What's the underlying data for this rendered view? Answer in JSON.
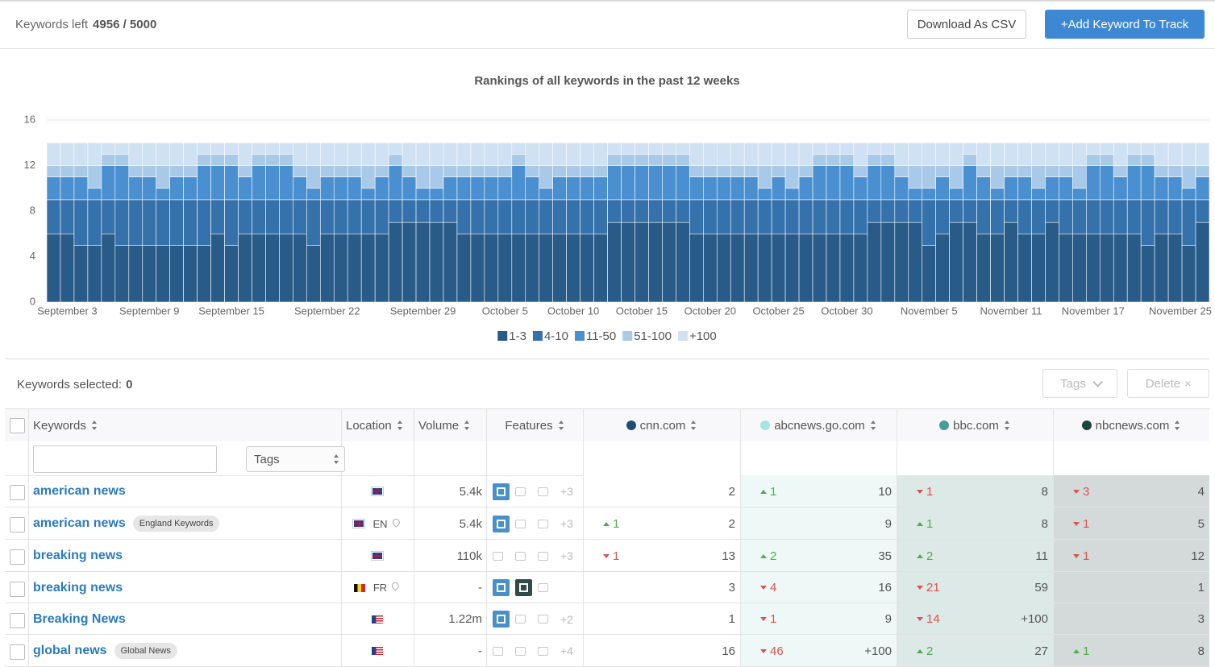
{
  "header": {
    "keywords_left_label": "Keywords left",
    "keywords_left": "4956 / 5000",
    "download": "Download As CSV",
    "add": "+Add Keyword To Track"
  },
  "chart_data": {
    "type": "stacked-bar",
    "title": "Rankings of all keywords in the past 12 weeks",
    "categories": [
      null,
      "September 3",
      null,
      null,
      null,
      null,
      null,
      "September 9",
      null,
      null,
      null,
      null,
      null,
      "September 15",
      null,
      null,
      null,
      null,
      null,
      null,
      "September 22",
      null,
      null,
      null,
      null,
      null,
      null,
      "September 29",
      null,
      null,
      null,
      null,
      null,
      "October 5",
      null,
      null,
      null,
      null,
      "October 10",
      null,
      null,
      null,
      null,
      "October 15",
      null,
      null,
      null,
      null,
      "October 20",
      null,
      null,
      null,
      null,
      "October 25",
      null,
      null,
      null,
      null,
      "October 30",
      null,
      null,
      null,
      null,
      null,
      "November 5",
      null,
      null,
      null,
      null,
      null,
      "November 11",
      null,
      null,
      null,
      null,
      null,
      "November 17",
      null,
      null,
      null,
      null,
      null,
      null,
      null,
      "November 25"
    ],
    "series": [
      {
        "name": "1-3",
        "color": "#285b88",
        "values": [
          6,
          6,
          5,
          5,
          6,
          5,
          5,
          5,
          5,
          5,
          5,
          5,
          6,
          5,
          6,
          6,
          6,
          6,
          6,
          5,
          6,
          6,
          6,
          6,
          6,
          7,
          7,
          7,
          7,
          7,
          6,
          6,
          6,
          6,
          6,
          6,
          6,
          6,
          6,
          6,
          6,
          7,
          7,
          7,
          7,
          7,
          7,
          6,
          6,
          6,
          6,
          6,
          6,
          6,
          6,
          6,
          6,
          6,
          6,
          6,
          7,
          7,
          7,
          7,
          5,
          6,
          7,
          7,
          6,
          6,
          7,
          6,
          6,
          7,
          6,
          6,
          6,
          6,
          6,
          6,
          5,
          6,
          6,
          5,
          7
        ]
      },
      {
        "name": "4-10",
        "color": "#3572ab",
        "values": [
          3,
          3,
          4,
          4,
          3,
          4,
          4,
          4,
          4,
          4,
          4,
          4,
          3,
          4,
          3,
          3,
          3,
          3,
          3,
          4,
          3,
          3,
          3,
          3,
          3,
          2,
          2,
          2,
          2,
          2,
          3,
          3,
          3,
          3,
          3,
          3,
          3,
          3,
          3,
          3,
          3,
          2,
          2,
          2,
          2,
          2,
          2,
          3,
          3,
          3,
          3,
          3,
          3,
          3,
          3,
          3,
          3,
          3,
          3,
          3,
          2,
          2,
          2,
          2,
          4,
          3,
          2,
          2,
          3,
          3,
          2,
          3,
          3,
          2,
          3,
          3,
          3,
          3,
          3,
          3,
          4,
          3,
          3,
          4,
          2
        ]
      },
      {
        "name": "11-50",
        "color": "#4a8fd0",
        "values": [
          2,
          2,
          2,
          1,
          3,
          3,
          2,
          2,
          1,
          2,
          2,
          3,
          3,
          3,
          2,
          3,
          3,
          3,
          2,
          1,
          2,
          2,
          2,
          1,
          2,
          3,
          2,
          1,
          1,
          2,
          2,
          2,
          2,
          2,
          3,
          2,
          1,
          2,
          2,
          2,
          2,
          3,
          3,
          3,
          3,
          3,
          3,
          2,
          2,
          2,
          2,
          2,
          1,
          2,
          1,
          2,
          3,
          3,
          3,
          2,
          3,
          3,
          2,
          1,
          1,
          2,
          1,
          3,
          2,
          1,
          2,
          2,
          1,
          2,
          2,
          1,
          3,
          3,
          2,
          3,
          3,
          2,
          2,
          1,
          2
        ]
      },
      {
        "name": "51-100",
        "color": "#a8c9e8",
        "values": [
          1,
          1,
          1,
          2,
          1,
          1,
          1,
          1,
          2,
          1,
          1,
          1,
          1,
          1,
          1,
          1,
          1,
          1,
          1,
          2,
          1,
          1,
          1,
          2,
          1,
          1,
          1,
          2,
          2,
          1,
          1,
          1,
          1,
          1,
          1,
          1,
          2,
          1,
          1,
          1,
          1,
          1,
          1,
          1,
          1,
          1,
          1,
          1,
          1,
          1,
          1,
          1,
          2,
          1,
          2,
          1,
          1,
          1,
          1,
          1,
          1,
          1,
          1,
          2,
          2,
          1,
          2,
          1,
          1,
          2,
          1,
          1,
          2,
          1,
          1,
          2,
          1,
          1,
          1,
          1,
          1,
          1,
          1,
          2,
          1
        ]
      },
      {
        "name": "+100",
        "color": "#cfe1f2",
        "values": [
          2,
          2,
          2,
          2,
          1,
          1,
          2,
          2,
          2,
          2,
          2,
          1,
          1,
          1,
          2,
          1,
          1,
          1,
          2,
          2,
          2,
          2,
          2,
          2,
          2,
          1,
          2,
          2,
          2,
          2,
          2,
          2,
          2,
          2,
          1,
          2,
          2,
          2,
          2,
          2,
          2,
          1,
          1,
          1,
          1,
          1,
          1,
          2,
          2,
          2,
          2,
          2,
          2,
          2,
          2,
          2,
          1,
          1,
          1,
          2,
          1,
          1,
          2,
          2,
          2,
          2,
          2,
          1,
          2,
          2,
          2,
          2,
          2,
          2,
          2,
          2,
          1,
          1,
          2,
          1,
          1,
          2,
          2,
          2,
          2
        ]
      }
    ],
    "ylim": [
      0,
      16
    ],
    "yticks": [
      0,
      4,
      8,
      12,
      16
    ],
    "grid": true
  },
  "selection": {
    "label": "Keywords selected:",
    "count": 0,
    "tags": "Tags",
    "delete": "Delete"
  },
  "table": {
    "columns": [
      {
        "label": "Keywords"
      },
      {
        "label": "Location"
      },
      {
        "label": "Volume"
      },
      {
        "label": "Features"
      },
      {
        "label": "cnn.com",
        "color": "#1d4f72"
      },
      {
        "label": "abcnews.go.com",
        "color": "#a6e3e3"
      },
      {
        "label": "bbc.com",
        "color": "#4a9c9a"
      },
      {
        "label": "nbcnews.com",
        "color": "#1b4640"
      }
    ],
    "filter_tags": "Tags",
    "rows": [
      {
        "keyword": "american news",
        "volume": "5.4k",
        "more": "+3",
        "ranks": [
          {
            "rank": 2
          },
          {
            "change": 1,
            "direction": "up",
            "rank": 10
          },
          {
            "change": 1,
            "direction": "down",
            "rank": 8
          },
          {
            "change": 3,
            "direction": "down",
            "rank": 4
          }
        ]
      },
      {
        "keyword": "american news",
        "tag": "England Keywords",
        "location": "EN",
        "volume": "5.4k",
        "more": "+3",
        "ranks": [
          {
            "change": 1,
            "direction": "up",
            "rank": 2
          },
          {
            "rank": 9
          },
          {
            "change": 1,
            "direction": "up",
            "rank": 8
          },
          {
            "change": 1,
            "direction": "down",
            "rank": 5
          }
        ]
      },
      {
        "keyword": "breaking news",
        "volume": "110k",
        "more": "+3",
        "ranks": [
          {
            "change": 1,
            "direction": "down",
            "rank": 13
          },
          {
            "change": 2,
            "direction": "up",
            "rank": 35
          },
          {
            "change": 2,
            "direction": "up",
            "rank": 11
          },
          {
            "change": 1,
            "direction": "down",
            "rank": 12
          }
        ]
      },
      {
        "keyword": "breaking news",
        "location": "FR",
        "volume": "-",
        "ranks": [
          {
            "rank": 3
          },
          {
            "change": 4,
            "direction": "down",
            "rank": 16
          },
          {
            "change": 21,
            "direction": "down",
            "rank": 59
          },
          {
            "rank": 1
          }
        ]
      },
      {
        "keyword": "Breaking News",
        "volume": "1.22m",
        "more": "+2",
        "ranks": [
          {
            "rank": 1
          },
          {
            "change": 1,
            "direction": "down",
            "rank": 9
          },
          {
            "change": 14,
            "direction": "down",
            "rank": "+100"
          },
          {
            "rank": 3
          }
        ]
      },
      {
        "keyword": "global news",
        "tag": "Global News",
        "volume": "-",
        "more": "+4",
        "ranks": [
          {
            "rank": 16
          },
          {
            "change": 46,
            "direction": "down",
            "rank": "+100"
          },
          {
            "change": 2,
            "direction": "up",
            "rank": 27
          },
          {
            "change": 1,
            "direction": "up",
            "rank": 8
          }
        ]
      }
    ]
  }
}
